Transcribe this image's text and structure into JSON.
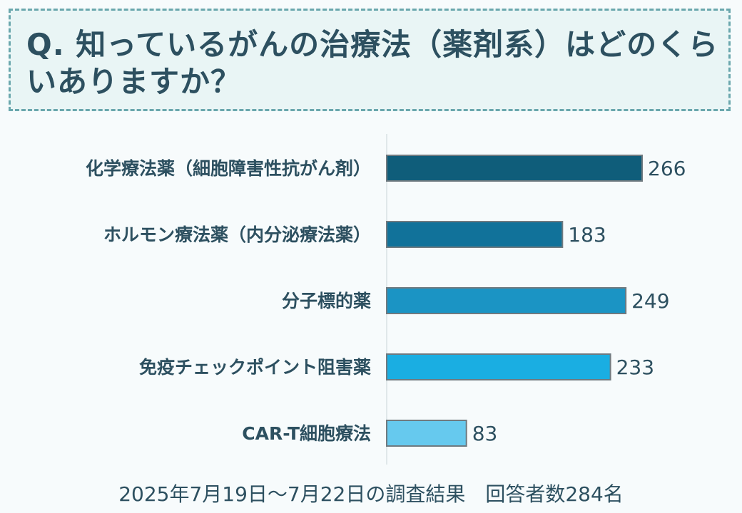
{
  "question": {
    "title": "Q. 知っているがんの治療法（薬剤系）はどのくらいありますか？"
  },
  "chart_data": {
    "type": "bar",
    "orientation": "horizontal",
    "categories": [
      "化学療法薬（細胞障害性抗がん剤）",
      "ホルモン療法薬（内分泌療法薬）",
      "分子標的薬",
      "免疫チェックポイント阻害薬",
      "CAR-T細胞療法"
    ],
    "values": [
      266,
      183,
      249,
      233,
      83
    ],
    "colors": [
      "#0f5d7a",
      "#11729a",
      "#1b94c4",
      "#1aaee2",
      "#66c9ee"
    ],
    "xlim": [
      0,
      300
    ],
    "grid": false,
    "title": "",
    "xlabel": "",
    "ylabel": ""
  },
  "footer": {
    "note": "2025年7月19日～7月22日の調査結果　回答者数284名"
  }
}
